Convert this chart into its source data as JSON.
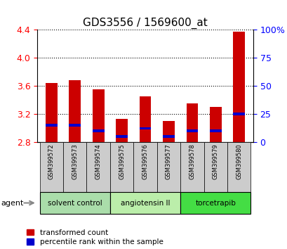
{
  "title": "GDS3556 / 1569600_at",
  "samples": [
    "GSM399572",
    "GSM399573",
    "GSM399574",
    "GSM399575",
    "GSM399576",
    "GSM399577",
    "GSM399578",
    "GSM399579",
    "GSM399580"
  ],
  "transformed_count": [
    3.64,
    3.68,
    3.55,
    3.13,
    3.45,
    3.1,
    3.35,
    3.3,
    4.37
  ],
  "percentile_rank": [
    15,
    15,
    10,
    5,
    12,
    5,
    10,
    10,
    25
  ],
  "bar_bottom": 2.8,
  "ylim": [
    2.8,
    4.4
  ],
  "y2lim": [
    0,
    100
  ],
  "yticks": [
    2.8,
    3.2,
    3.6,
    4.0,
    4.4
  ],
  "y2ticks": [
    0,
    25,
    50,
    75,
    100
  ],
  "bar_color_red": "#cc0000",
  "bar_color_blue": "#0000cc",
  "groups": [
    {
      "label": "solvent control",
      "start": 0,
      "end": 3,
      "color": "#aaddaa"
    },
    {
      "label": "angiotensin II",
      "start": 3,
      "end": 6,
      "color": "#bbeeaa"
    },
    {
      "label": "torcetrapib",
      "start": 6,
      "end": 9,
      "color": "#44dd44"
    }
  ],
  "agent_label": "agent",
  "legend_entries": [
    {
      "label": "transformed count",
      "color": "#cc0000"
    },
    {
      "label": "percentile rank within the sample",
      "color": "#0000cc"
    }
  ],
  "bar_width": 0.5,
  "bg_color": "#ffffff",
  "tick_bg_color": "#cccccc",
  "y_tick_color": "red",
  "y2_tick_color": "blue"
}
